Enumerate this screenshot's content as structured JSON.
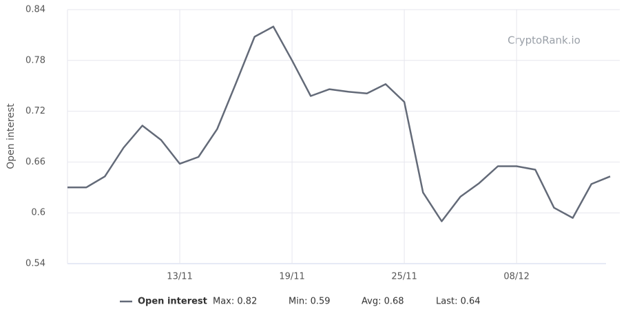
{
  "chart_data": {
    "type": "line",
    "watermark": "CryptoRank.io",
    "y_label": "Open interest",
    "categories": [
      null,
      null,
      null,
      null,
      null,
      null,
      "13/11",
      null,
      null,
      null,
      null,
      null,
      "19/11",
      null,
      null,
      null,
      null,
      null,
      "25/11",
      null,
      null,
      null,
      null,
      null,
      "08/12",
      null,
      null,
      null,
      null,
      null
    ],
    "series": [
      {
        "name": "Open interest",
        "color": "#636a78",
        "values": [
          0.63,
          0.63,
          0.643,
          0.677,
          0.703,
          0.686,
          0.658,
          0.666,
          0.699,
          0.753,
          0.808,
          0.82,
          0.78,
          0.738,
          0.746,
          0.743,
          0.741,
          0.752,
          0.731,
          0.624,
          0.59,
          0.619,
          0.635,
          0.655,
          0.655,
          0.651,
          0.606,
          0.594,
          0.634,
          0.643
        ]
      }
    ],
    "legend_stats": [
      "Max: 0.82",
      "Min: 0.59",
      "Avg: 0.68",
      "Last: 0.64"
    ],
    "ylim": [
      0.54,
      0.84
    ],
    "yticks": [
      0.54,
      0.6,
      0.66,
      0.72,
      0.78,
      0.84
    ],
    "grid": true
  }
}
